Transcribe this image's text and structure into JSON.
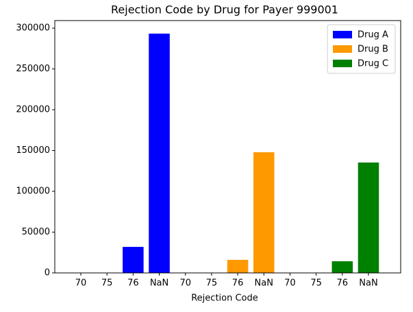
{
  "chart_data": {
    "type": "bar",
    "title": "Rejection Code by Drug for Payer 999001",
    "x_label": "Rejection Code",
    "categories": [
      "70",
      "75",
      "76",
      "NaN",
      "70",
      "75",
      "76",
      "NaN",
      "70",
      "75",
      "76",
      "NaN"
    ],
    "series": [
      {
        "name": "Drug A",
        "color": "#0000ff",
        "values": [
          0,
          0,
          31900,
          293300,
          null,
          null,
          null,
          null,
          null,
          null,
          null,
          null
        ]
      },
      {
        "name": "Drug B",
        "color": "#ff9900",
        "values": [
          null,
          null,
          null,
          null,
          0,
          0,
          16000,
          147900,
          null,
          null,
          null,
          null
        ]
      },
      {
        "name": "Drug C",
        "color": "#008000",
        "values": [
          null,
          null,
          null,
          null,
          null,
          null,
          null,
          null,
          0,
          0,
          14300,
          135300
        ]
      }
    ],
    "ylim": [
      0,
      309300
    ],
    "yticks": [
      0,
      50000,
      100000,
      150000,
      200000,
      250000,
      300000
    ],
    "legend": "upper right",
    "grid": false
  }
}
